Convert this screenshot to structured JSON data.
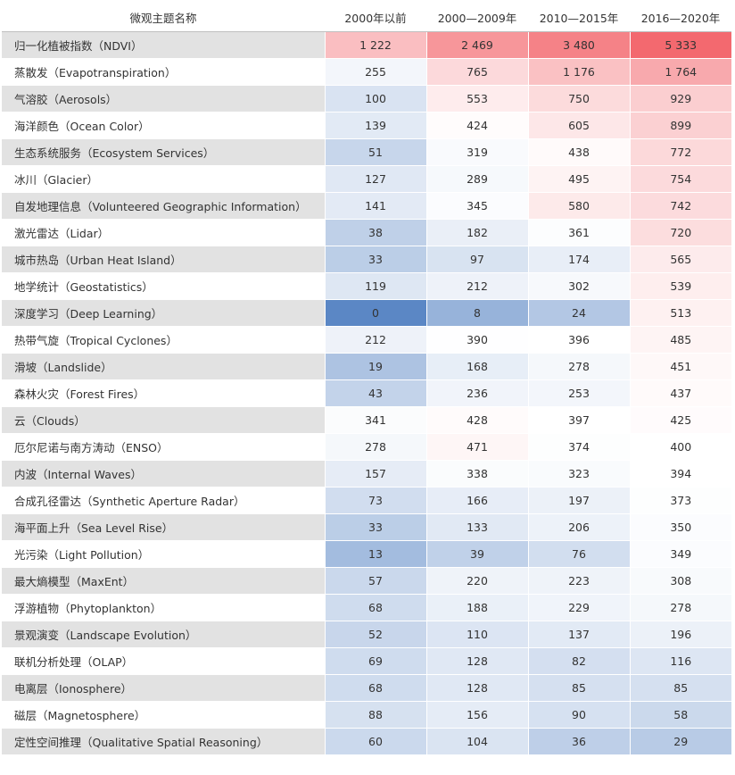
{
  "chart_data": {
    "type": "heatmap",
    "header_name": "微观主题名称",
    "columns": [
      "2000年以前",
      "2000—2009年",
      "2010—2015年",
      "2016—2020年"
    ],
    "rows": [
      {
        "name": "归一化植被指数（NDVI）",
        "values": [
          "1 222",
          "2 469",
          "3 480",
          "5 333"
        ]
      },
      {
        "name": "蒸散发（Evapotranspiration）",
        "values": [
          "255",
          "765",
          "1 176",
          "1 764"
        ]
      },
      {
        "name": "气溶胶（Aerosols）",
        "values": [
          "100",
          "553",
          "750",
          "929"
        ]
      },
      {
        "name": "海洋颜色（Ocean Color）",
        "values": [
          "139",
          "424",
          "605",
          "899"
        ]
      },
      {
        "name": "生态系统服务（Ecosystem Services）",
        "values": [
          "51",
          "319",
          "438",
          "772"
        ]
      },
      {
        "name": "冰川（Glacier）",
        "values": [
          "127",
          "289",
          "495",
          "754"
        ]
      },
      {
        "name": "自发地理信息（Volunteered Geographic Information）",
        "values": [
          "141",
          "345",
          "580",
          "742"
        ]
      },
      {
        "name": "激光雷达（Lidar）",
        "values": [
          "38",
          "182",
          "361",
          "720"
        ]
      },
      {
        "name": "城市热岛（Urban Heat Island）",
        "values": [
          "33",
          "97",
          "174",
          "565"
        ]
      },
      {
        "name": "地学统计（Geostatistics）",
        "values": [
          "119",
          "212",
          "302",
          "539"
        ]
      },
      {
        "name": "深度学习（Deep Learning）",
        "values": [
          "0",
          "8",
          "24",
          "513"
        ]
      },
      {
        "name": "热带气旋（Tropical Cyclones）",
        "values": [
          "212",
          "390",
          "396",
          "485"
        ]
      },
      {
        "name": "滑坡（Landslide）",
        "values": [
          "19",
          "168",
          "278",
          "451"
        ]
      },
      {
        "name": "森林火灾（Forest Fires）",
        "values": [
          "43",
          "236",
          "253",
          "437"
        ]
      },
      {
        "name": "云（Clouds）",
        "values": [
          "341",
          "428",
          "397",
          "425"
        ]
      },
      {
        "name": "厄尔尼诺与南方涛动（ENSO）",
        "values": [
          "278",
          "471",
          "374",
          "400"
        ]
      },
      {
        "name": "内波（Internal Waves）",
        "values": [
          "157",
          "338",
          "323",
          "394"
        ]
      },
      {
        "name": "合成孔径雷达（Synthetic Aperture Radar）",
        "values": [
          "73",
          "166",
          "197",
          "373"
        ]
      },
      {
        "name": "海平面上升（Sea Level Rise）",
        "values": [
          "33",
          "133",
          "206",
          "350"
        ]
      },
      {
        "name": "光污染（Light Pollution）",
        "values": [
          "13",
          "39",
          "76",
          "349"
        ]
      },
      {
        "name": "最大熵模型（MaxEnt）",
        "values": [
          "57",
          "220",
          "223",
          "308"
        ]
      },
      {
        "name": "浮游植物（Phytoplankton）",
        "values": [
          "68",
          "188",
          "229",
          "278"
        ]
      },
      {
        "name": "景观演变（Landscape Evolution）",
        "values": [
          "52",
          "110",
          "137",
          "196"
        ]
      },
      {
        "name": "联机分析处理（OLAP）",
        "values": [
          "69",
          "128",
          "82",
          "116"
        ]
      },
      {
        "name": "电离层（Ionosphere）",
        "values": [
          "68",
          "128",
          "85",
          "85"
        ]
      },
      {
        "name": "磁层（Magnetosphere）",
        "values": [
          "88",
          "156",
          "90",
          "58"
        ]
      },
      {
        "name": "定性空间推理（Qualitative Spatial Reasoning）",
        "values": [
          "60",
          "104",
          "36",
          "29"
        ]
      }
    ],
    "colors": {
      "low": "#5b87c5",
      "mid": "#ffffff",
      "high": "#f3696f",
      "name_band": "#e2e2e2"
    }
  }
}
